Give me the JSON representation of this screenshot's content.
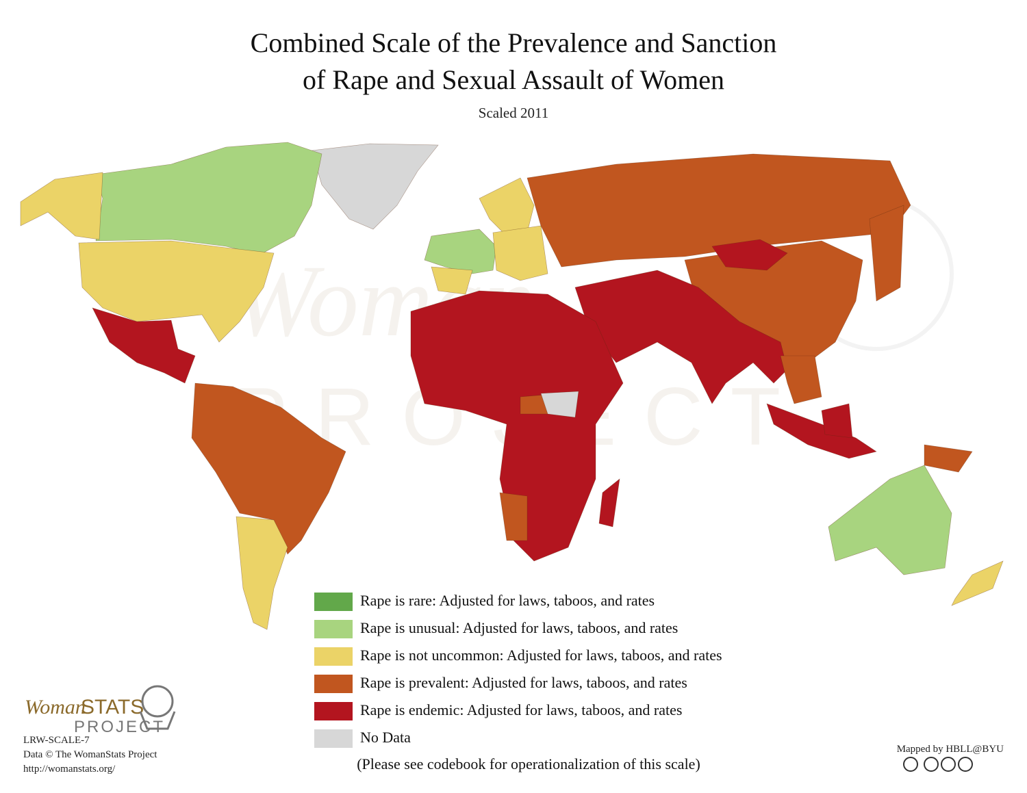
{
  "header": {
    "title_lines": [
      "Combined Scale of the Prevalence and Sanction",
      "of Rape and Sexual Assault of Women"
    ],
    "subtitle": "Scaled 2011"
  },
  "legend": {
    "items": [
      {
        "label": "Rape is rare: Adjusted for laws, taboos, and rates",
        "color": "#62a84a"
      },
      {
        "label": "Rape is unusual: Adjusted for laws, taboos, and rates",
        "color": "#a8d47f"
      },
      {
        "label": "Rape is not uncommon: Adjusted for laws, taboos, and rates",
        "color": "#ebd367"
      },
      {
        "label": "Rape is prevalent: Adjusted for laws, taboos, and rates",
        "color": "#c1561f"
      },
      {
        "label": "Rape is endemic: Adjusted for laws, taboos, and rates",
        "color": "#b3151f"
      },
      {
        "label": "No Data",
        "color": "#d7d7d7"
      }
    ],
    "note": "(Please see codebook for operationalization of this scale)"
  },
  "logo": {
    "word_a": "Woman",
    "word_b": "STATS",
    "word_c": "PROJECT"
  },
  "footer": {
    "code": "LRW-SCALE-7",
    "data_credit": "Data © The WomanStats Project",
    "url": "http://womanstats.org/",
    "mapped_by": "Mapped by HBLL@BYU"
  }
}
